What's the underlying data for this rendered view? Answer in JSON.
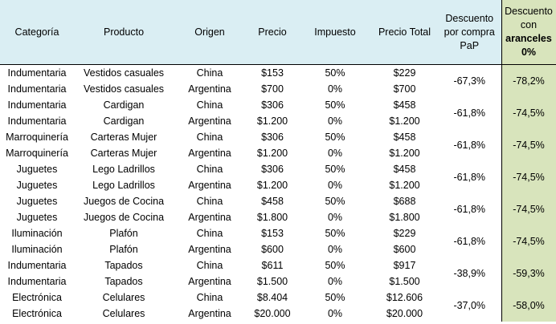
{
  "headers": {
    "categoria": "Categoría",
    "producto": "Producto",
    "origen": "Origen",
    "precio": "Precio",
    "impuesto": "Impuesto",
    "precio_total": "Precio Total",
    "descuento_pap": "Descuento por compra PaP",
    "descuento_aranceles_line1": "Descuento",
    "descuento_aranceles_line2": "con",
    "descuento_aranceles_line3": "aranceles",
    "descuento_aranceles_line4": "0%"
  },
  "groups": [
    {
      "descuento_pap": "-67,3%",
      "descuento_aranceles": "-78,2%",
      "rows": [
        {
          "categoria": "Indumentaria",
          "producto": "Vestidos casuales",
          "origen": "China",
          "precio": "$153",
          "impuesto": "50%",
          "precio_total": "$229"
        },
        {
          "categoria": "Indumentaria",
          "producto": "Vestidos casuales",
          "origen": "Argentina",
          "precio": "$700",
          "impuesto": "0%",
          "precio_total": "$700"
        }
      ]
    },
    {
      "descuento_pap": "-61,8%",
      "descuento_aranceles": "-74,5%",
      "rows": [
        {
          "categoria": "Indumentaria",
          "producto": "Cardigan",
          "origen": "China",
          "precio": "$306",
          "impuesto": "50%",
          "precio_total": "$458"
        },
        {
          "categoria": "Indumentaria",
          "producto": "Cardigan",
          "origen": "Argentina",
          "precio": "$1.200",
          "impuesto": "0%",
          "precio_total": "$1.200"
        }
      ]
    },
    {
      "descuento_pap": "-61,8%",
      "descuento_aranceles": "-74,5%",
      "rows": [
        {
          "categoria": "Marroquinería",
          "producto": "Carteras Mujer",
          "origen": "China",
          "precio": "$306",
          "impuesto": "50%",
          "precio_total": "$458"
        },
        {
          "categoria": "Marroquinería",
          "producto": "Carteras Mujer",
          "origen": "Argentina",
          "precio": "$1.200",
          "impuesto": "0%",
          "precio_total": "$1.200"
        }
      ]
    },
    {
      "descuento_pap": "-61,8%",
      "descuento_aranceles": "-74,5%",
      "rows": [
        {
          "categoria": "Juguetes",
          "producto": "Lego Ladrillos",
          "origen": "China",
          "precio": "$306",
          "impuesto": "50%",
          "precio_total": "$458"
        },
        {
          "categoria": "Juguetes",
          "producto": "Lego Ladrillos",
          "origen": "Argentina",
          "precio": "$1.200",
          "impuesto": "0%",
          "precio_total": "$1.200"
        }
      ]
    },
    {
      "descuento_pap": "-61,8%",
      "descuento_aranceles": "-74,5%",
      "rows": [
        {
          "categoria": "Juguetes",
          "producto": "Juegos de Cocina",
          "origen": "China",
          "precio": "$458",
          "impuesto": "50%",
          "precio_total": "$688"
        },
        {
          "categoria": "Juguetes",
          "producto": "Juegos de Cocina",
          "origen": "Argentina",
          "precio": "$1.800",
          "impuesto": "0%",
          "precio_total": "$1.800"
        }
      ]
    },
    {
      "descuento_pap": "-61,8%",
      "descuento_aranceles": "-74,5%",
      "rows": [
        {
          "categoria": "Iluminación",
          "producto": "Plafón",
          "origen": "China",
          "precio": "$153",
          "impuesto": "50%",
          "precio_total": "$229"
        },
        {
          "categoria": "Iluminación",
          "producto": "Plafón",
          "origen": "Argentina",
          "precio": "$600",
          "impuesto": "0%",
          "precio_total": "$600"
        }
      ]
    },
    {
      "descuento_pap": "-38,9%",
      "descuento_aranceles": "-59,3%",
      "rows": [
        {
          "categoria": "Indumentaria",
          "producto": "Tapados",
          "origen": "China",
          "precio": "$611",
          "impuesto": "50%",
          "precio_total": "$917"
        },
        {
          "categoria": "Indumentaria",
          "producto": "Tapados",
          "origen": "Argentina",
          "precio": "$1.500",
          "impuesto": "0%",
          "precio_total": "$1.500"
        }
      ]
    },
    {
      "descuento_pap": "-37,0%",
      "descuento_aranceles": "-58,0%",
      "rows": [
        {
          "categoria": "Electrónica",
          "producto": "Celulares",
          "origen": "China",
          "precio": "$8.404",
          "impuesto": "50%",
          "precio_total": "$12.606"
        },
        {
          "categoria": "Electrónica",
          "producto": "Celulares",
          "origen": "Argentina",
          "precio": "$20.000",
          "impuesto": "0%",
          "precio_total": "$20.000"
        }
      ]
    }
  ]
}
